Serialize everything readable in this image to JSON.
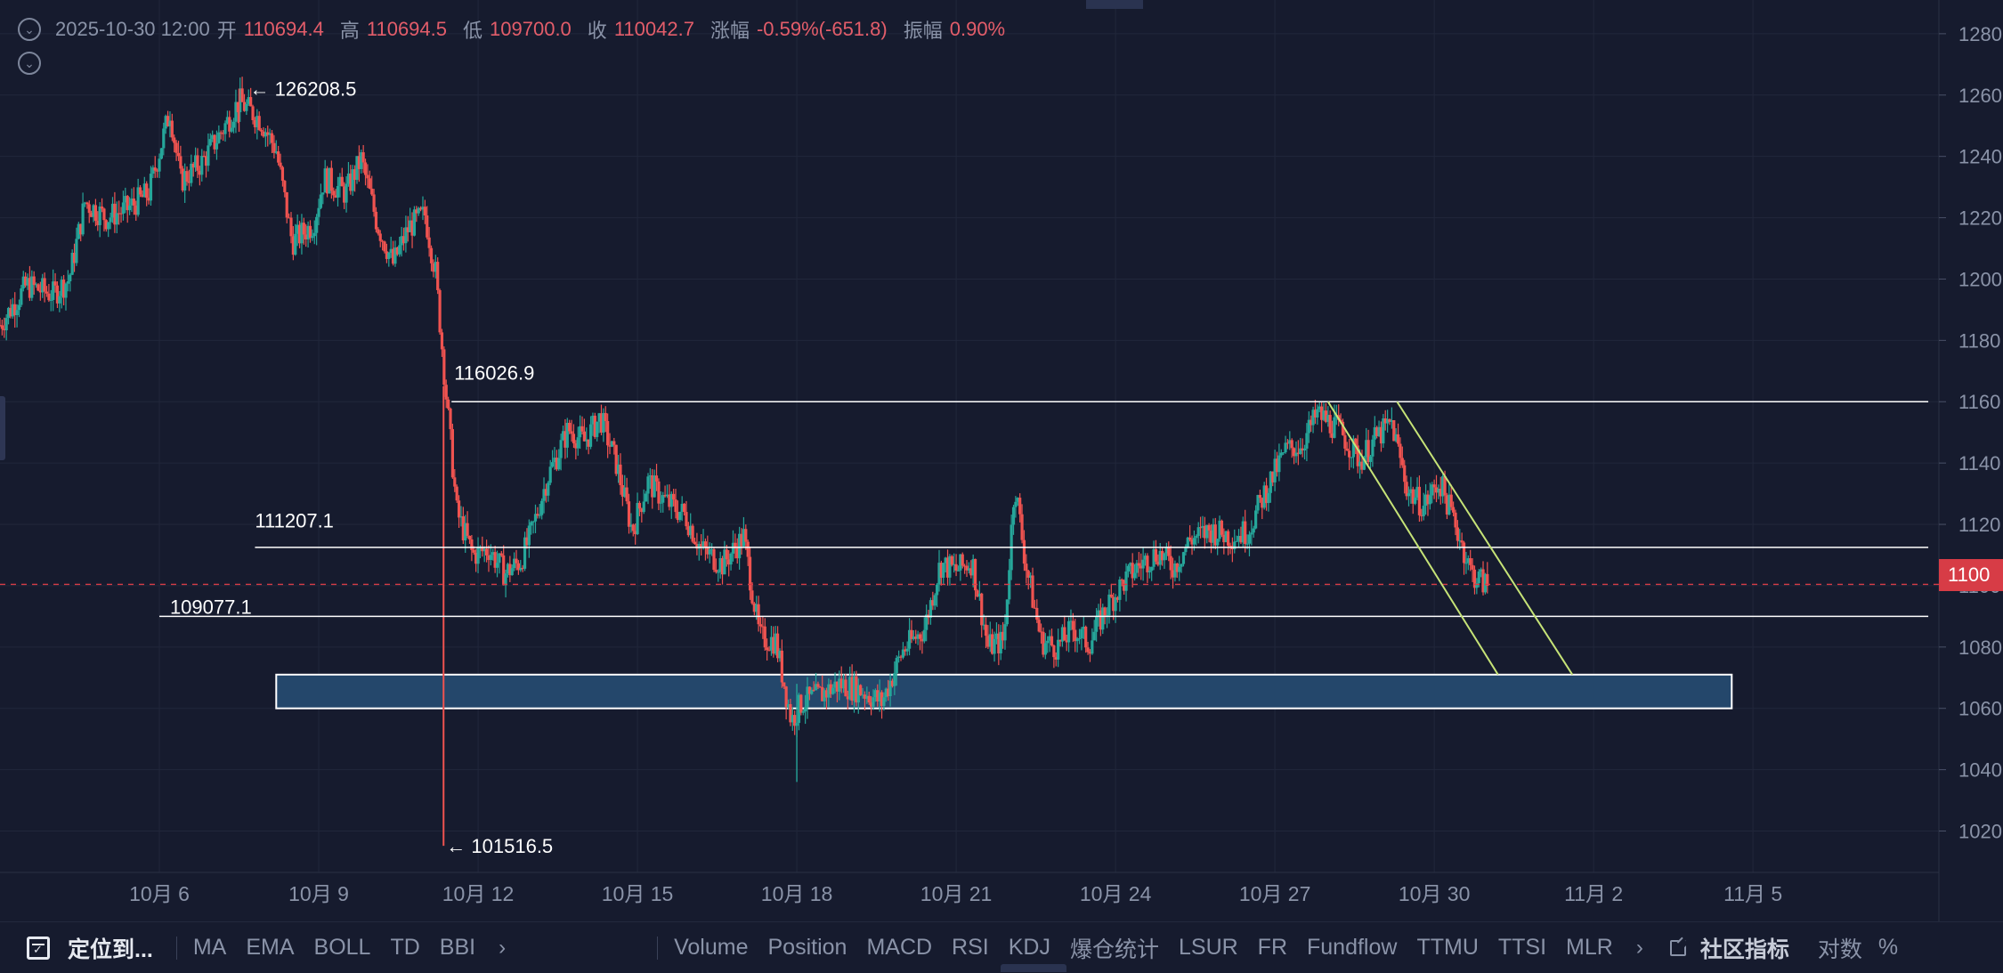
{
  "ohlc": {
    "datetime": "2025-10-30 12:00",
    "open_label": "开",
    "open": "110694.4",
    "high_label": "高",
    "high": "110694.5",
    "low_label": "低",
    "low": "109700.0",
    "close_label": "收",
    "close": "110042.7",
    "change_label": "涨幅",
    "change": "-0.59%(-651.8)",
    "amp_label": "振幅",
    "amp": "0.90%"
  },
  "last_price_badge": "1100",
  "toolbar": {
    "locate": "定位到...",
    "main_indicators": [
      "MA",
      "EMA",
      "BOLL",
      "TD",
      "BBI"
    ],
    "sub_indicators": [
      "Volume",
      "Position",
      "MACD",
      "RSI",
      "KDJ",
      "爆仓统计",
      "LSUR",
      "FR",
      "Fundflow",
      "TTMU",
      "TTSI",
      "MLR"
    ],
    "community": "社区指标",
    "log": "对数",
    "percent": "%"
  },
  "colors": {
    "background": "#161b2e",
    "up": "#26a69a",
    "down": "#ef5350",
    "level_line": "#ffffff",
    "trend_line": "#c6e377",
    "zone_fill": "#24476b",
    "last_price_line": "#d73c46"
  },
  "chart_data": {
    "type": "candlestick",
    "y_axis_ticks": [
      "1280",
      "1260",
      "1240",
      "1220",
      "1200",
      "1180",
      "1160",
      "1140",
      "1120",
      "1100",
      "1080",
      "1060",
      "1040",
      "1020"
    ],
    "y_axis_tick_values": [
      128000,
      126000,
      124000,
      122000,
      120000,
      118000,
      116000,
      114000,
      112000,
      110000,
      108000,
      106000,
      104000,
      102000
    ],
    "y_range": [
      100650,
      129100
    ],
    "x_axis_ticks": [
      "10月 6",
      "10月 9",
      "10月 12",
      "10月 15",
      "10月 18",
      "10月 21",
      "10月 24",
      "10月 27",
      "10月 30",
      "11月 2",
      "11月 5"
    ],
    "x_axis_tick_days": [
      6,
      9,
      12,
      15,
      18,
      21,
      24,
      27,
      30,
      33,
      36
    ],
    "x_unit": "day of October 2025 (33 = 11月 2)",
    "x_range": [
      3.0,
      39.5
    ],
    "extreme_labels": [
      {
        "text": "126208.5",
        "day": 7.5,
        "price": 126208.5,
        "arrow": "←"
      },
      {
        "text": "101516.5",
        "day": 11.2,
        "price": 101516.5,
        "arrow": "←"
      }
    ],
    "level_labels": [
      {
        "text": "116026.9",
        "price": 116026.9
      },
      {
        "text": "111207.1",
        "price": 111207.1
      },
      {
        "text": "109077.1",
        "price": 109077.1
      }
    ],
    "horizontal_levels": [
      {
        "price": 116000,
        "from_day": 11.5,
        "to_day": 39.3
      },
      {
        "price": 111250,
        "from_day": 7.8,
        "to_day": 39.3
      },
      {
        "price": 109000,
        "from_day": 6.0,
        "to_day": 39.3
      }
    ],
    "last_price_line": {
      "price": 110042.7
    },
    "zone": {
      "price_top": 107100,
      "price_bottom": 106000,
      "from_day": 8.2,
      "to_day": 35.6
    },
    "trend_lines": [
      {
        "from": {
          "day": 28.0,
          "price": 116000
        },
        "to": {
          "day": 31.2,
          "price": 107100
        }
      },
      {
        "from": {
          "day": 29.3,
          "price": 116000
        },
        "to": {
          "day": 32.6,
          "price": 107100
        }
      }
    ],
    "close_path": [
      [
        3.0,
        118500
      ],
      [
        3.5,
        119800
      ],
      [
        4.0,
        119500
      ],
      [
        4.3,
        120000
      ],
      [
        4.6,
        122500
      ],
      [
        5.0,
        122000
      ],
      [
        5.4,
        122300
      ],
      [
        5.8,
        122800
      ],
      [
        6.2,
        125500
      ],
      [
        6.4,
        123200
      ],
      [
        6.8,
        123800
      ],
      [
        7.2,
        124900
      ],
      [
        7.5,
        125800
      ],
      [
        7.9,
        125200
      ],
      [
        8.2,
        124200
      ],
      [
        8.5,
        121200
      ],
      [
        8.9,
        121800
      ],
      [
        9.1,
        123300
      ],
      [
        9.5,
        122800
      ],
      [
        9.8,
        123900
      ],
      [
        10.1,
        121800
      ],
      [
        10.4,
        120500
      ],
      [
        10.7,
        121700
      ],
      [
        11.0,
        122100
      ],
      [
        11.2,
        120200
      ],
      [
        11.4,
        116200
      ],
      [
        11.6,
        112400
      ],
      [
        11.9,
        111000
      ],
      [
        12.2,
        111200
      ],
      [
        12.5,
        110400
      ],
      [
        12.8,
        110800
      ],
      [
        13.0,
        111700
      ],
      [
        13.3,
        113500
      ],
      [
        13.7,
        115100
      ],
      [
        14.0,
        114700
      ],
      [
        14.3,
        115500
      ],
      [
        14.6,
        114000
      ],
      [
        14.9,
        111800
      ],
      [
        15.2,
        113400
      ],
      [
        15.5,
        112800
      ],
      [
        15.9,
        112300
      ],
      [
        16.2,
        111200
      ],
      [
        16.6,
        110700
      ],
      [
        17.0,
        111600
      ],
      [
        17.3,
        108300
      ],
      [
        17.6,
        108200
      ],
      [
        17.9,
        105600
      ],
      [
        18.1,
        106200
      ],
      [
        18.4,
        106400
      ],
      [
        18.8,
        106800
      ],
      [
        19.2,
        106600
      ],
      [
        19.6,
        106200
      ],
      [
        20.0,
        107900
      ],
      [
        20.4,
        108600
      ],
      [
        20.7,
        110700
      ],
      [
        21.0,
        110500
      ],
      [
        21.3,
        110800
      ],
      [
        21.6,
        108000
      ],
      [
        21.9,
        108200
      ],
      [
        22.1,
        113400
      ],
      [
        22.3,
        110800
      ],
      [
        22.6,
        108200
      ],
      [
        22.9,
        108000
      ],
      [
        23.2,
        108600
      ],
      [
        23.5,
        108100
      ],
      [
        23.8,
        109200
      ],
      [
        24.1,
        110000
      ],
      [
        24.4,
        110600
      ],
      [
        24.8,
        111100
      ],
      [
        25.1,
        110600
      ],
      [
        25.4,
        111500
      ],
      [
        25.8,
        111800
      ],
      [
        26.2,
        111600
      ],
      [
        26.5,
        111800
      ],
      [
        26.8,
        113000
      ],
      [
        27.2,
        114400
      ],
      [
        27.5,
        114600
      ],
      [
        27.8,
        115600
      ],
      [
        28.2,
        115100
      ],
      [
        28.6,
        114100
      ],
      [
        28.9,
        114800
      ],
      [
        29.2,
        115300
      ],
      [
        29.5,
        113100
      ],
      [
        29.8,
        112600
      ],
      [
        30.1,
        113400
      ],
      [
        30.4,
        112000
      ],
      [
        30.7,
        110400
      ],
      [
        31.0,
        110000
      ]
    ]
  }
}
